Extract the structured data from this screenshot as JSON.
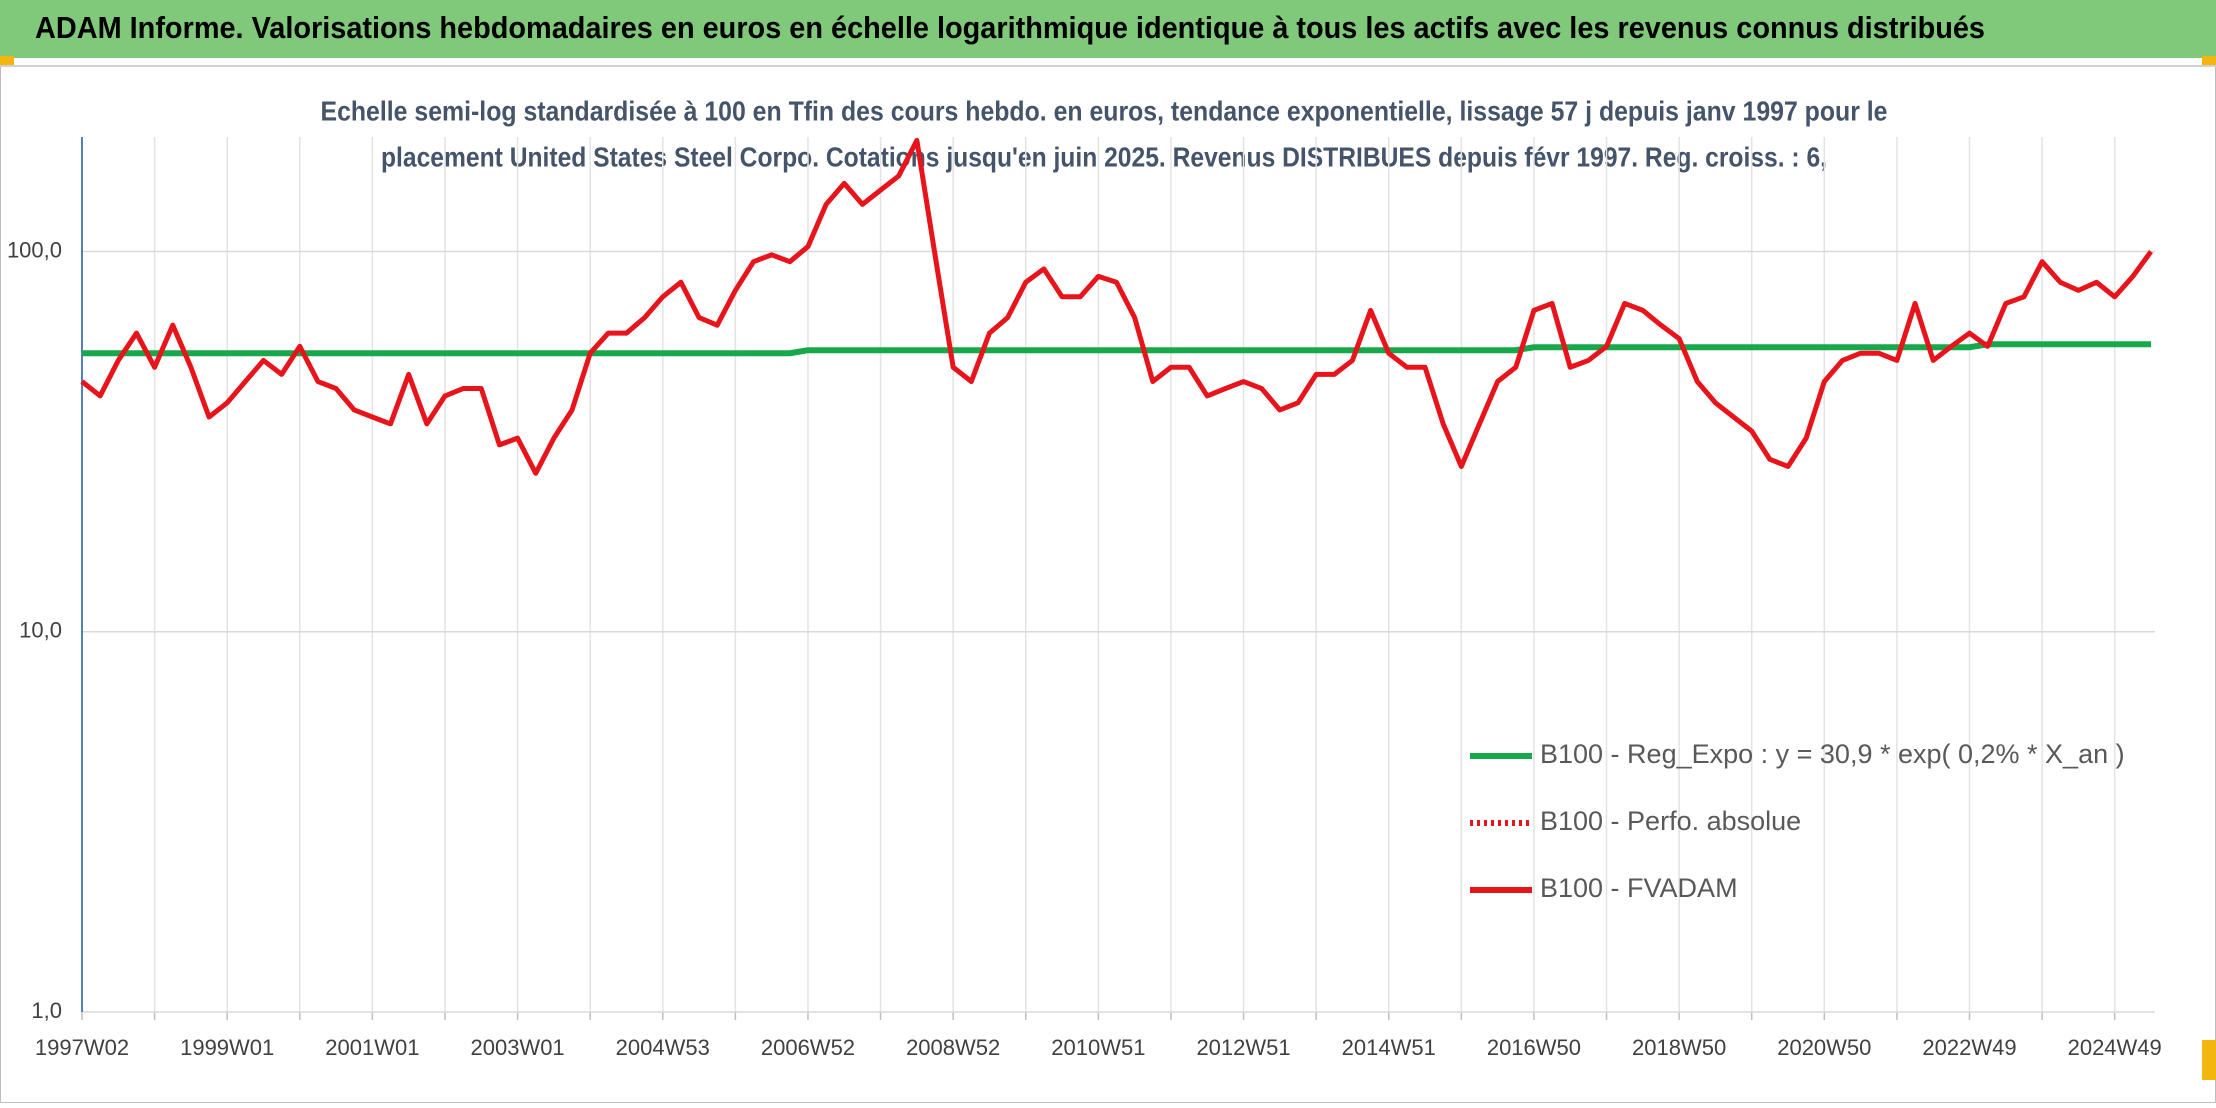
{
  "chart_data": {
    "type": "line",
    "title": "ADAM Informe. Valorisations hebdomadaires en euros en échelle logarithmique identique à tous les actifs avec les revenus connus distribués",
    "subtitle": [
      "Echelle semi-log standardisée à 100 en Tfin des cours hebdo. en euros, tendance exponentielle, lissage 57 j depuis janv 1997 pour le",
      "placement United States Steel Corpo. Cotations jusqu'en juin 2025. Revenus DISTRIBUES depuis févr 1997. Reg. croiss. : 6,"
    ],
    "categories": [
      "1997W02",
      null,
      null,
      null,
      null,
      null,
      null,
      null,
      "1999W01",
      null,
      null,
      null,
      null,
      null,
      null,
      null,
      "2001W01",
      null,
      null,
      null,
      null,
      null,
      null,
      null,
      "2003W01",
      null,
      null,
      null,
      null,
      null,
      null,
      null,
      "2004W53",
      null,
      null,
      null,
      null,
      null,
      null,
      null,
      "2006W52",
      null,
      null,
      null,
      null,
      null,
      null,
      null,
      "2008W52",
      null,
      null,
      null,
      null,
      null,
      null,
      null,
      "2010W51",
      null,
      null,
      null,
      null,
      null,
      null,
      null,
      "2012W51",
      null,
      null,
      null,
      null,
      null,
      null,
      null,
      "2014W51",
      null,
      null,
      null,
      null,
      null,
      null,
      null,
      "2016W50",
      null,
      null,
      null,
      null,
      null,
      null,
      null,
      "2018W50",
      null,
      null,
      null,
      null,
      null,
      null,
      null,
      "2020W50",
      null,
      null,
      null,
      null,
      null,
      null,
      null,
      "2022W49",
      null,
      null,
      null,
      null,
      null,
      null,
      null,
      "2024W49",
      null,
      null
    ],
    "series": [
      {
        "name": "B100 - Reg_Expo : y = 30,9 * exp( 0,2% *  X_an )",
        "color": "#16a84a",
        "dash": "solid",
        "values": [
          54,
          54,
          54,
          54,
          54,
          54,
          54,
          54,
          54,
          54,
          54,
          54,
          54,
          54,
          54,
          54,
          54,
          54,
          54,
          54,
          54,
          54,
          54,
          54,
          54,
          54,
          54,
          54,
          54,
          54,
          54,
          54,
          54,
          54,
          54,
          54,
          54,
          54,
          54,
          54,
          55,
          55,
          55,
          55,
          55,
          55,
          55,
          55,
          55,
          55,
          55,
          55,
          55,
          55,
          55,
          55,
          55,
          55,
          55,
          55,
          55,
          55,
          55,
          55,
          55,
          55,
          55,
          55,
          55,
          55,
          55,
          55,
          55,
          55,
          55,
          55,
          55,
          55,
          55,
          55,
          56,
          56,
          56,
          56,
          56,
          56,
          56,
          56,
          56,
          56,
          56,
          56,
          56,
          56,
          56,
          56,
          56,
          56,
          56,
          56,
          56,
          56,
          56,
          56,
          56,
          57,
          57,
          57,
          57,
          57,
          57,
          57,
          57,
          57,
          57
        ]
      },
      {
        "name": "B100 - Perfo. absolue",
        "color": "#e8141b",
        "dash": "dotted",
        "values": [
          null,
          null,
          null,
          null,
          null,
          null,
          null,
          null,
          null,
          null,
          null,
          null,
          null,
          null,
          null,
          null,
          null,
          null,
          null,
          null,
          null,
          null,
          null,
          null,
          null,
          null,
          null,
          null,
          null,
          null,
          null,
          null,
          null,
          null,
          null,
          null,
          null,
          null,
          null,
          null,
          null,
          null,
          null,
          null,
          null,
          null,
          null,
          null,
          null,
          null,
          null,
          null,
          null,
          null,
          null,
          null,
          null,
          null,
          null,
          null,
          null,
          null,
          null,
          null,
          null,
          null,
          null,
          null,
          null,
          null,
          null,
          null,
          null,
          null,
          null,
          null,
          null,
          null,
          null,
          null,
          null,
          null,
          null,
          null,
          null,
          null,
          null,
          null,
          null,
          null,
          null,
          null,
          null,
          null,
          null,
          null,
          null,
          null,
          null,
          null,
          null,
          null,
          null,
          null,
          null,
          null,
          null,
          null,
          null,
          null,
          null,
          null,
          null,
          null,
          null
        ]
      },
      {
        "name": "B100 - FVADAM",
        "color": "#e8141b",
        "dash": "solid",
        "values": [
          45.5,
          41.7,
          51.7,
          61,
          49.6,
          64,
          49.6,
          36.7,
          40,
          45.5,
          51.7,
          47.5,
          56.3,
          45.5,
          43.6,
          38.3,
          36.7,
          35.2,
          47.5,
          35.2,
          41.7,
          43.6,
          43.6,
          31,
          32.3,
          26.1,
          32.3,
          38.3,
          54,
          61,
          61,
          67,
          76,
          83,
          67,
          64,
          79,
          94,
          98,
          94,
          103,
          133,
          151,
          133,
          145,
          158,
          196,
          98,
          49.6,
          45.5,
          61,
          67,
          83,
          90,
          76,
          76,
          86,
          83,
          67,
          45.5,
          49.6,
          49.6,
          41.7,
          43.6,
          45.5,
          43.6,
          38.3,
          40,
          47.5,
          47.5,
          51.7,
          70,
          54,
          49.6,
          49.6,
          35.2,
          27.2,
          35.2,
          45.5,
          49.6,
          70,
          73,
          49.6,
          51.7,
          56.3,
          73,
          70,
          64,
          59,
          45.5,
          40,
          36.7,
          33.7,
          28.4,
          27.2,
          32.3,
          45.5,
          51.7,
          54,
          54,
          51.7,
          73,
          51.7,
          56.3,
          61,
          56.3,
          73,
          76,
          94,
          83,
          79,
          83,
          76,
          86,
          100
        ]
      }
    ],
    "ylim": [
      1,
      200
    ],
    "yticks": [
      {
        "value": 1,
        "label": "1,0"
      },
      {
        "value": 10,
        "label": "10,0"
      },
      {
        "value": 100,
        "label": "100,0"
      }
    ],
    "log_y": true,
    "grid": true,
    "legend": "lower right"
  }
}
